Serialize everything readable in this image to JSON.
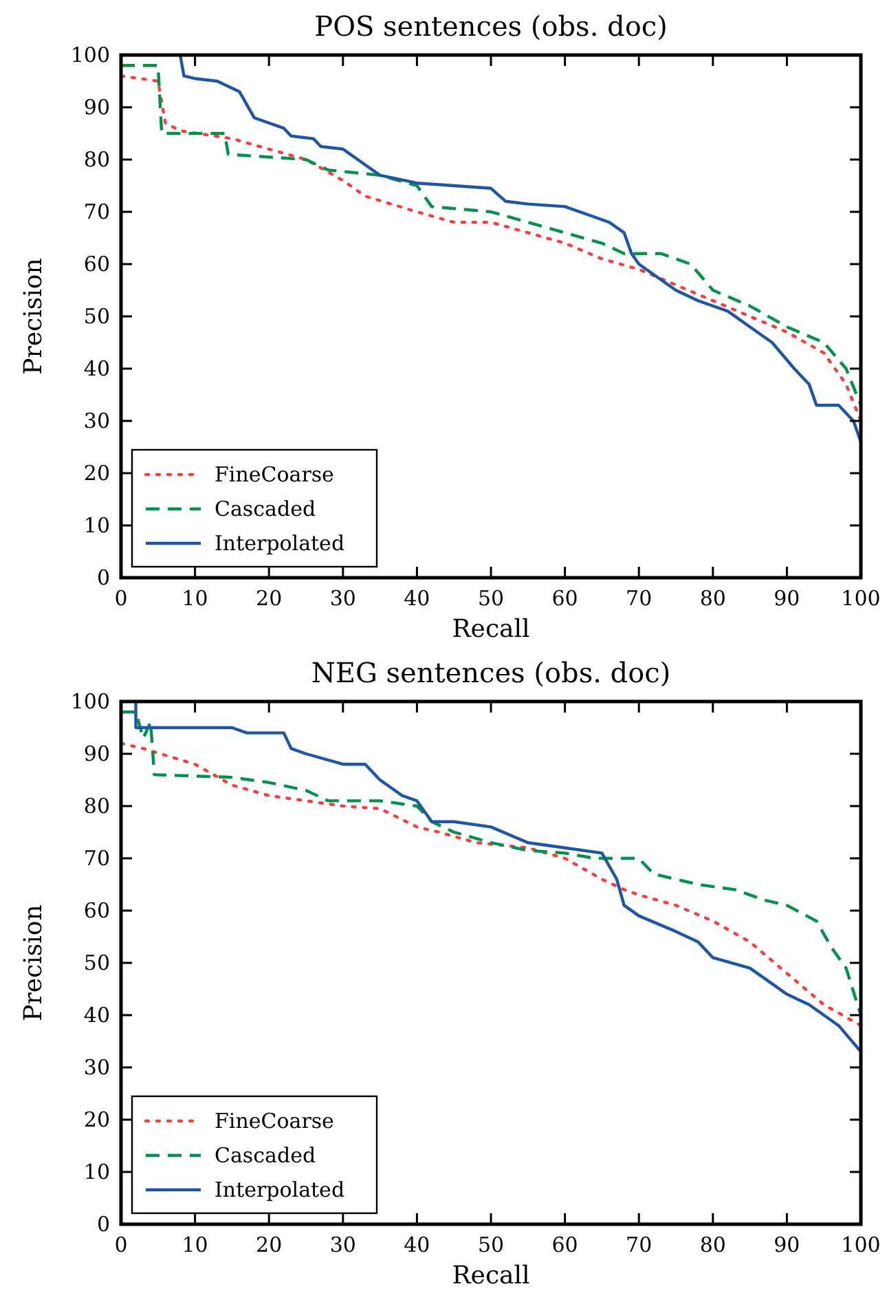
{
  "chart_data": [
    {
      "type": "line",
      "title": "POS sentences (obs. doc)",
      "xlabel": "Recall",
      "ylabel": "Precision",
      "xlim": [
        0,
        100
      ],
      "ylim": [
        0,
        100
      ],
      "xticks": [
        0,
        10,
        20,
        30,
        40,
        50,
        60,
        70,
        80,
        90,
        100
      ],
      "yticks": [
        0,
        10,
        20,
        30,
        40,
        50,
        60,
        70,
        80,
        90,
        100
      ],
      "grid": false,
      "legend": "bottom left",
      "series": [
        {
          "name": "FineCoarse",
          "color": "#ff3b3b",
          "line_style": "dotted",
          "x": [
            0,
            5,
            6,
            8,
            15,
            20,
            25,
            30,
            33,
            40,
            45,
            50,
            55,
            60,
            65,
            70,
            75,
            80,
            85,
            90,
            95,
            98,
            100
          ],
          "values": [
            96,
            95,
            87,
            85.5,
            84,
            82,
            80,
            76,
            73,
            70,
            68,
            68,
            66,
            64,
            61,
            59,
            56,
            53,
            50,
            47,
            43,
            37,
            30
          ]
        },
        {
          "name": "Cascaded",
          "color": "#00914a",
          "line_style": "dashed",
          "x": [
            0,
            5,
            5.5,
            14,
            14.5,
            25,
            28,
            35,
            40,
            42,
            50,
            55,
            60,
            65,
            68,
            73,
            77,
            80,
            85,
            90,
            95,
            98,
            100
          ],
          "values": [
            98,
            98,
            85,
            85,
            81,
            80,
            78,
            77,
            75,
            71,
            70,
            68,
            66,
            64,
            62,
            62,
            60,
            55,
            52,
            48,
            45,
            40,
            33
          ]
        },
        {
          "name": "Interpolated",
          "color": "#1f55a5",
          "line_style": "solid",
          "x": [
            8,
            8.5,
            10,
            13,
            16,
            18,
            22,
            23,
            26,
            27,
            30,
            32,
            35,
            40,
            45,
            50,
            52,
            55,
            60,
            63,
            66,
            68,
            69,
            70,
            72,
            75,
            78,
            82,
            85,
            88,
            91,
            93,
            94,
            97,
            99,
            100
          ],
          "values": [
            100,
            96,
            95.5,
            95,
            93,
            88,
            86,
            84.5,
            84,
            82.5,
            82,
            80,
            77,
            75.5,
            75,
            74.5,
            72,
            71.5,
            71,
            69.5,
            68,
            66,
            62,
            60,
            58,
            55,
            53,
            51,
            48,
            45,
            40,
            37,
            33,
            33,
            30,
            26
          ]
        }
      ]
    },
    {
      "type": "line",
      "title": "NEG sentences (obs. doc)",
      "xlabel": "Recall",
      "ylabel": "Precision",
      "xlim": [
        0,
        100
      ],
      "ylim": [
        0,
        100
      ],
      "xticks": [
        0,
        10,
        20,
        30,
        40,
        50,
        60,
        70,
        80,
        90,
        100
      ],
      "yticks": [
        0,
        10,
        20,
        30,
        40,
        50,
        60,
        70,
        80,
        90,
        100
      ],
      "grid": false,
      "legend": "bottom left",
      "series": [
        {
          "name": "FineCoarse",
          "color": "#ff3b3b",
          "line_style": "dotted",
          "x": [
            0,
            3,
            10,
            15,
            20,
            25,
            30,
            35,
            40,
            43,
            48,
            55,
            60,
            65,
            68,
            70,
            75,
            80,
            85,
            90,
            95,
            100
          ],
          "values": [
            92,
            91,
            88,
            84,
            82,
            81,
            80,
            79.5,
            76,
            75,
            73,
            72,
            70,
            66,
            64,
            63,
            61,
            58,
            54,
            48,
            42,
            38
          ]
        },
        {
          "name": "Cascaded",
          "color": "#00914a",
          "line_style": "dashed",
          "x": [
            0,
            2,
            3,
            4,
            4.5,
            15,
            20,
            25,
            28,
            35,
            40,
            42,
            45,
            50,
            55,
            60,
            64,
            70,
            72,
            78,
            83,
            87,
            90,
            94,
            96,
            98,
            100
          ],
          "values": [
            98,
            98,
            93,
            96,
            86,
            85.5,
            84.5,
            83,
            81,
            81,
            80,
            77,
            75,
            73,
            71.5,
            71,
            70,
            70,
            67,
            65,
            64,
            62,
            61,
            58,
            53,
            49,
            40
          ]
        },
        {
          "name": "Interpolated",
          "color": "#1f55a5",
          "line_style": "solid",
          "x": [
            2,
            2,
            15,
            17,
            22,
            23,
            25,
            30,
            33,
            35,
            38,
            40,
            42,
            45,
            50,
            55,
            60,
            65,
            67,
            68,
            70,
            75,
            78,
            80,
            85,
            88,
            90,
            93,
            95,
            97,
            100
          ],
          "values": [
            100,
            95,
            95,
            94,
            94,
            91,
            90,
            88,
            88,
            85,
            82,
            81,
            77,
            77,
            76,
            73,
            72,
            71,
            66,
            61,
            59,
            56,
            54,
            51,
            49,
            46,
            44,
            42,
            40,
            38,
            33
          ]
        }
      ]
    }
  ]
}
